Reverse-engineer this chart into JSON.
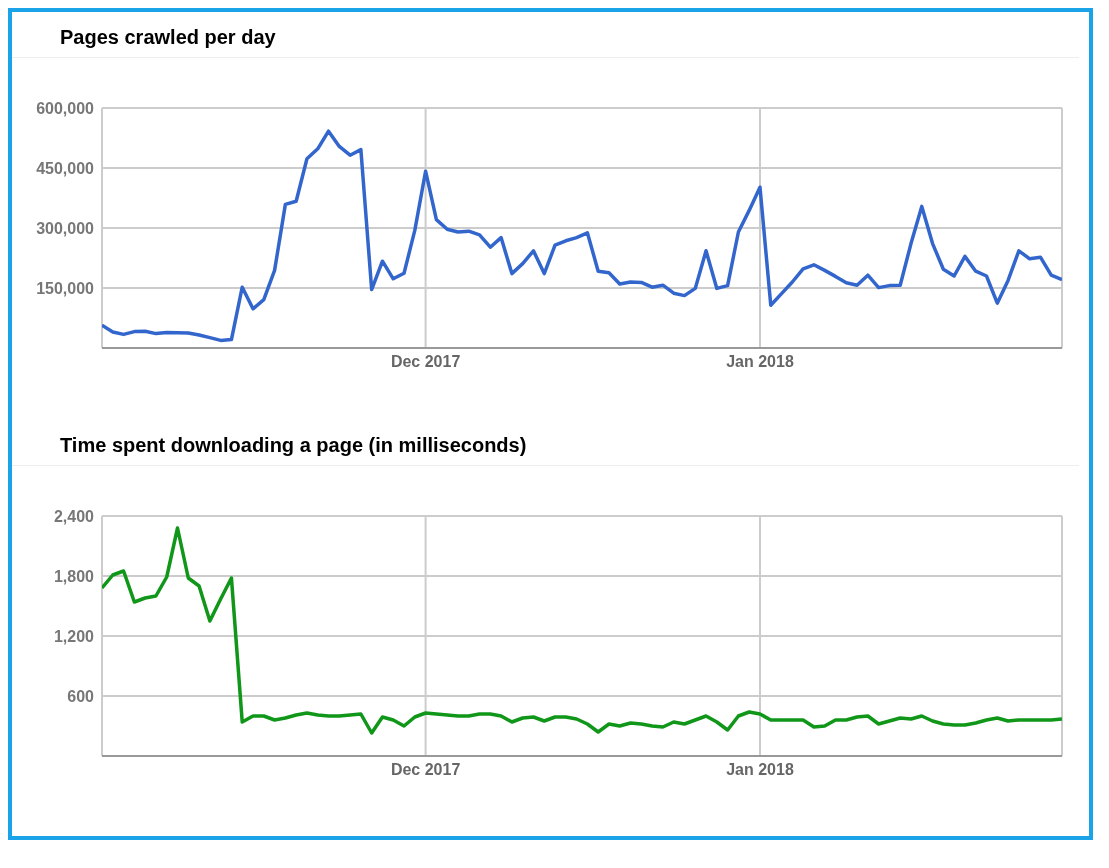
{
  "chart_data": [
    {
      "type": "line",
      "title": "Pages crawled per day",
      "color": "#3366cc",
      "grid": true,
      "x": [
        "2017-11-01",
        "2017-11-02",
        "2017-11-03",
        "2017-11-04",
        "2017-11-05",
        "2017-11-06",
        "2017-11-07",
        "2017-11-08",
        "2017-11-09",
        "2017-11-10",
        "2017-11-11",
        "2017-11-12",
        "2017-11-13",
        "2017-11-14",
        "2017-11-15",
        "2017-11-16",
        "2017-11-17",
        "2017-11-18",
        "2017-11-19",
        "2017-11-20",
        "2017-11-21",
        "2017-11-22",
        "2017-11-23",
        "2017-11-24",
        "2017-11-25",
        "2017-11-26",
        "2017-11-27",
        "2017-11-28",
        "2017-11-29",
        "2017-11-30",
        "2017-12-01",
        "2017-12-02",
        "2017-12-03",
        "2017-12-04",
        "2017-12-05",
        "2017-12-06",
        "2017-12-07",
        "2017-12-08",
        "2017-12-09",
        "2017-12-10",
        "2017-12-11",
        "2017-12-12",
        "2017-12-13",
        "2017-12-14",
        "2017-12-15",
        "2017-12-16",
        "2017-12-17",
        "2017-12-18",
        "2017-12-19",
        "2017-12-20",
        "2017-12-21",
        "2017-12-22",
        "2017-12-23",
        "2017-12-24",
        "2017-12-25",
        "2017-12-26",
        "2017-12-27",
        "2017-12-28",
        "2017-12-29",
        "2017-12-30",
        "2017-12-31",
        "2018-01-01",
        "2018-01-02",
        "2018-01-03",
        "2018-01-04",
        "2018-01-05",
        "2018-01-06",
        "2018-01-07",
        "2018-01-08",
        "2018-01-09",
        "2018-01-10",
        "2018-01-11",
        "2018-01-12",
        "2018-01-13",
        "2018-01-14",
        "2018-01-15",
        "2018-01-16",
        "2018-01-17",
        "2018-01-18",
        "2018-01-19",
        "2018-01-20",
        "2018-01-21",
        "2018-01-22",
        "2018-01-23",
        "2018-01-24",
        "2018-01-25",
        "2018-01-26",
        "2018-01-27",
        "2018-01-28",
        "2018-01-29"
      ],
      "values": [
        57000,
        40000,
        34000,
        41000,
        42000,
        36000,
        39000,
        38000,
        37500,
        32500,
        26000,
        19000,
        21000,
        152000,
        98000,
        121000,
        194000,
        359000,
        367000,
        473000,
        498000,
        542000,
        504000,
        482000,
        496000,
        146000,
        217000,
        173000,
        187000,
        294000,
        442000,
        321000,
        297000,
        290000,
        292000,
        283000,
        252000,
        276000,
        186000,
        211000,
        243000,
        186000,
        257000,
        268000,
        276000,
        288000,
        192000,
        188000,
        160000,
        165000,
        164000,
        152000,
        157000,
        137000,
        131000,
        149000,
        243000,
        149000,
        156000,
        290000,
        344000,
        402000,
        107000,
        136000,
        165000,
        198000,
        208000,
        194000,
        179000,
        163000,
        157000,
        182000,
        151000,
        156000,
        157000,
        261000,
        354000,
        261000,
        197000,
        180000,
        229000,
        192000,
        180000,
        112000,
        169000,
        243000,
        223000,
        227000,
        182000,
        171000
      ],
      "xlim": [
        "2017-11-01",
        "2018-01-29"
      ],
      "xticks": [
        {
          "value": "2017-12-01",
          "label": "Dec 2017"
        },
        {
          "value": "2018-01-01",
          "label": "Jan 2018"
        }
      ],
      "ylim": [
        0,
        600000
      ],
      "yticks": [
        {
          "value": 0,
          "label": null
        },
        {
          "value": 150000,
          "label": "150,000"
        },
        {
          "value": 300000,
          "label": "300,000"
        },
        {
          "value": 450000,
          "label": "450,000"
        },
        {
          "value": 600000,
          "label": "600,000"
        }
      ]
    },
    {
      "type": "line",
      "title": "Time spent downloading a page (in milliseconds)",
      "color": "#109618",
      "grid": true,
      "x": [
        "2017-11-01",
        "2017-11-02",
        "2017-11-03",
        "2017-11-04",
        "2017-11-05",
        "2017-11-06",
        "2017-11-07",
        "2017-11-08",
        "2017-11-09",
        "2017-11-10",
        "2017-11-11",
        "2017-11-12",
        "2017-11-13",
        "2017-11-14",
        "2017-11-15",
        "2017-11-16",
        "2017-11-17",
        "2017-11-18",
        "2017-11-19",
        "2017-11-20",
        "2017-11-21",
        "2017-11-22",
        "2017-11-23",
        "2017-11-24",
        "2017-11-25",
        "2017-11-26",
        "2017-11-27",
        "2017-11-28",
        "2017-11-29",
        "2017-11-30",
        "2017-12-01",
        "2017-12-02",
        "2017-12-03",
        "2017-12-04",
        "2017-12-05",
        "2017-12-06",
        "2017-12-07",
        "2017-12-08",
        "2017-12-09",
        "2017-12-10",
        "2017-12-11",
        "2017-12-12",
        "2017-12-13",
        "2017-12-14",
        "2017-12-15",
        "2017-12-16",
        "2017-12-17",
        "2017-12-18",
        "2017-12-19",
        "2017-12-20",
        "2017-12-21",
        "2017-12-22",
        "2017-12-23",
        "2017-12-24",
        "2017-12-25",
        "2017-12-26",
        "2017-12-27",
        "2017-12-28",
        "2017-12-29",
        "2017-12-30",
        "2017-12-31",
        "2018-01-01",
        "2018-01-02",
        "2018-01-03",
        "2018-01-04",
        "2018-01-05",
        "2018-01-06",
        "2018-01-07",
        "2018-01-08",
        "2018-01-09",
        "2018-01-10",
        "2018-01-11",
        "2018-01-12",
        "2018-01-13",
        "2018-01-14",
        "2018-01-15",
        "2018-01-16",
        "2018-01-17",
        "2018-01-18",
        "2018-01-19",
        "2018-01-20",
        "2018-01-21",
        "2018-01-22",
        "2018-01-23",
        "2018-01-24",
        "2018-01-25",
        "2018-01-26",
        "2018-01-27",
        "2018-01-28",
        "2018-01-29"
      ],
      "values": [
        1680,
        1810,
        1850,
        1540,
        1580,
        1600,
        1790,
        2280,
        1780,
        1700,
        1350,
        1570,
        1780,
        340,
        400,
        400,
        360,
        380,
        410,
        430,
        410,
        400,
        400,
        410,
        420,
        230,
        390,
        360,
        300,
        390,
        430,
        420,
        410,
        400,
        400,
        420,
        420,
        400,
        340,
        380,
        390,
        350,
        390,
        390,
        370,
        320,
        240,
        320,
        300,
        330,
        320,
        300,
        290,
        340,
        320,
        360,
        400,
        340,
        260,
        400,
        440,
        420,
        360,
        360,
        360,
        360,
        290,
        300,
        360,
        360,
        390,
        400,
        320,
        350,
        380,
        370,
        400,
        350,
        320,
        310,
        310,
        330,
        360,
        380,
        350,
        360,
        360,
        360,
        360,
        370
      ],
      "xlim": [
        "2017-11-01",
        "2018-01-29"
      ],
      "xticks": [
        {
          "value": "2017-12-01",
          "label": "Dec 2017"
        },
        {
          "value": "2018-01-01",
          "label": "Jan 2018"
        }
      ],
      "ylim": [
        0,
        2400
      ],
      "yticks": [
        {
          "value": 0,
          "label": null
        },
        {
          "value": 600,
          "label": "600"
        },
        {
          "value": 1200,
          "label": "1,200"
        },
        {
          "value": 1800,
          "label": "1,800"
        },
        {
          "value": 2400,
          "label": "2,400"
        }
      ]
    }
  ]
}
